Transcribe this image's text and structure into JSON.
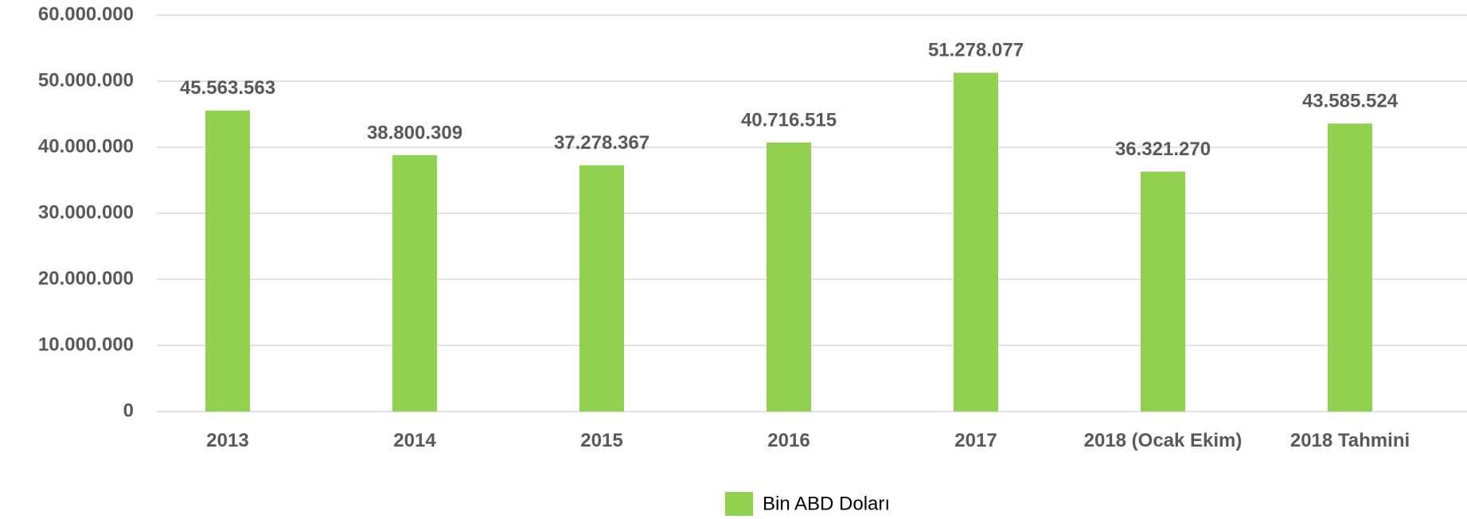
{
  "chart_data": {
    "type": "bar",
    "categories": [
      "2013",
      "2014",
      "2015",
      "2016",
      "2017",
      "2018 (Ocak Ekim)",
      "2018 Tahmini"
    ],
    "series": [
      {
        "name": "Bin ABD Doları",
        "color": "#92d050",
        "values": [
          45563563,
          38800309,
          37278367,
          40716515,
          51278077,
          36321270,
          43585524
        ],
        "value_labels": [
          "45.563.563",
          "38.800.309",
          "37.278.367",
          "40.716.515",
          "51.278.077",
          "36.321.270",
          "43.585.524"
        ]
      }
    ],
    "ylim": [
      0,
      60000000
    ],
    "yticks": [
      0,
      {
        "value": 10000000,
        "label": "10.000.000"
      },
      {
        "value": 20000000,
        "label": "20.000.000"
      },
      {
        "value": 30000000,
        "label": "30.000.000"
      },
      {
        "value": 40000000,
        "label": "40.000.000"
      },
      {
        "value": 50000000,
        "label": "50.000.000"
      },
      {
        "value": 60000000,
        "label": "60.000.000"
      }
    ],
    "grid": true,
    "legend": "bottom"
  }
}
